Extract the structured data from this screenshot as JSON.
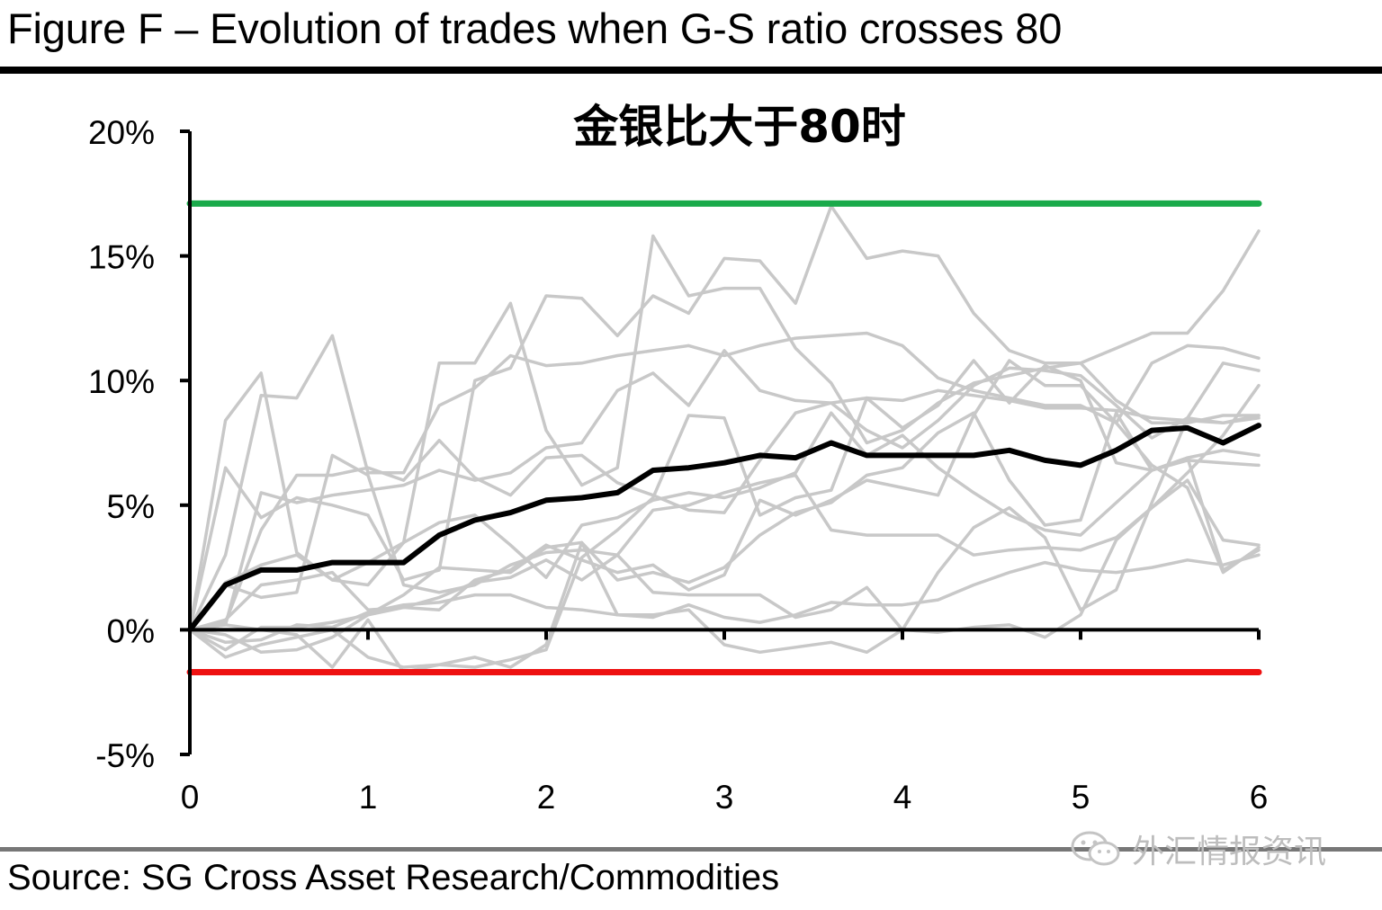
{
  "figure_title": "Figure F – Evolution of trades when G-S ratio crosses 80",
  "source": "Source: SG Cross Asset Research/Commodities",
  "watermark": "外汇情报资讯",
  "colors": {
    "average": "#000000",
    "individual": "#c8c8c8",
    "upper_threshold": "#1aaa4a",
    "lower_threshold": "#ee1111",
    "axis": "#000000"
  },
  "chart_data": {
    "type": "line",
    "title": "金银比大于80时",
    "xlabel": "",
    "ylabel": "",
    "xlim": [
      0,
      6
    ],
    "ylim": [
      -5,
      20
    ],
    "x_ticks": [
      0,
      1,
      2,
      3,
      4,
      5,
      6
    ],
    "x_tick_labels": [
      "0",
      "1",
      "2",
      "3",
      "4",
      "5",
      "6"
    ],
    "y_ticks": [
      -5,
      0,
      5,
      10,
      15,
      20
    ],
    "y_tick_labels": [
      "-5%",
      "0%",
      "5%",
      "10%",
      "15%",
      "20%"
    ],
    "grid": false,
    "x": [
      0,
      0.2,
      0.4,
      0.6,
      0.8,
      1.0,
      1.2,
      1.4,
      1.6,
      1.8,
      2.0,
      2.2,
      2.4,
      2.6,
      2.8,
      3.0,
      3.2,
      3.4,
      3.6,
      3.8,
      4.0,
      4.2,
      4.4,
      4.6,
      4.8,
      5.0,
      5.2,
      5.4,
      5.6,
      5.8,
      6.0
    ],
    "thresholds": [
      {
        "role": "upper",
        "y": 17.1
      },
      {
        "role": "lower",
        "y": -1.7
      }
    ],
    "average": [
      0,
      1.8,
      2.4,
      2.4,
      2.7,
      2.7,
      2.7,
      3.8,
      4.4,
      4.7,
      5.2,
      5.3,
      5.5,
      6.4,
      6.5,
      6.7,
      7.0,
      6.9,
      7.5,
      7.0,
      7.0,
      7.0,
      7.0,
      7.2,
      6.8,
      6.6,
      7.2,
      8.0,
      8.1,
      7.5,
      8.2
    ],
    "series": [
      {
        "values": [
          0,
          8.4,
          10.3,
          3.1,
          2.0,
          2.7,
          3.5,
          10.7,
          10.7,
          13.1,
          8.0,
          5.8,
          6.5,
          15.8,
          13.4,
          13.7,
          13.7,
          11.3,
          9.9,
          7.5,
          8.0,
          9.1,
          9.9,
          10.2,
          10.5,
          10.7,
          11.3,
          11.9,
          11.9,
          13.6,
          16.0
        ]
      },
      {
        "values": [
          0,
          6.5,
          4.5,
          5.3,
          5.0,
          4.6,
          2.0,
          2.4,
          10.0,
          10.5,
          13.4,
          13.3,
          11.8,
          13.4,
          12.7,
          14.9,
          14.8,
          13.1,
          17.0,
          14.9,
          15.2,
          15.0,
          12.7,
          11.2,
          10.7,
          10.7,
          9.2,
          8.3,
          8.3,
          8.6,
          8.6
        ]
      },
      {
        "values": [
          0,
          3.0,
          9.4,
          9.3,
          11.8,
          6.3,
          6.3,
          9.0,
          9.7,
          11.0,
          10.6,
          10.7,
          11.0,
          11.2,
          11.4,
          11.0,
          11.4,
          11.7,
          11.8,
          11.9,
          11.4,
          10.1,
          9.6,
          9.3,
          9.0,
          9.0,
          8.3,
          10.7,
          11.4,
          11.3,
          10.9
        ]
      },
      {
        "values": [
          0,
          1.8,
          1.3,
          1.5,
          7.0,
          6.2,
          1.8,
          1.5,
          1.8,
          2.6,
          3.1,
          3.2,
          3.0,
          4.8,
          5.0,
          5.5,
          5.9,
          6.2,
          4.0,
          3.8,
          3.8,
          3.8,
          3.0,
          3.2,
          3.3,
          3.2,
          3.7,
          4.9,
          6.3,
          7.8,
          9.8
        ]
      },
      {
        "values": [
          0,
          0.2,
          5.5,
          5.1,
          5.4,
          5.6,
          5.8,
          6.4,
          6.0,
          6.3,
          7.3,
          7.5,
          9.6,
          10.3,
          9.0,
          11.2,
          9.6,
          9.2,
          9.1,
          9.3,
          9.2,
          9.6,
          9.4,
          9.2,
          8.9,
          8.9,
          8.8,
          8.5,
          8.4,
          8.3,
          8.6
        ]
      },
      {
        "values": [
          0,
          0.3,
          4.0,
          6.2,
          6.2,
          6.5,
          6.0,
          7.6,
          6.1,
          5.4,
          6.9,
          7.0,
          5.9,
          5.4,
          4.8,
          4.7,
          6.8,
          8.7,
          9.1,
          8.0,
          7.3,
          8.4,
          9.8,
          10.5,
          10.4,
          10.2,
          9.0,
          7.7,
          8.5,
          8.3,
          8.5
        ]
      },
      {
        "values": [
          0,
          1.9,
          2.6,
          3.0,
          2.0,
          1.8,
          3.5,
          4.3,
          4.6,
          3.4,
          2.1,
          4.2,
          4.5,
          5.2,
          5.5,
          5.3,
          5.7,
          6.3,
          8.7,
          7.0,
          7.8,
          6.5,
          5.5,
          4.6,
          4.0,
          3.8,
          5.1,
          6.4,
          6.9,
          7.2,
          7.0
        ]
      },
      {
        "values": [
          0,
          -0.8,
          0.1,
          0.1,
          0.3,
          0.6,
          1.4,
          2.5,
          2.4,
          2.3,
          3.3,
          3.5,
          2.0,
          2.3,
          1.9,
          2.5,
          3.8,
          4.7,
          5.1,
          6.2,
          6.5,
          7.9,
          8.7,
          6.0,
          4.2,
          4.4,
          8.7,
          6.4,
          6.9,
          2.4,
          3.2
        ]
      },
      {
        "values": [
          0,
          0.4,
          1.8,
          2.0,
          2.3,
          0.8,
          0.9,
          1.3,
          1.9,
          2.1,
          2.8,
          2.0,
          3.0,
          1.5,
          1.4,
          1.4,
          1.4,
          0.5,
          0.8,
          1.7,
          0.0,
          2.3,
          4.1,
          4.9,
          3.7,
          0.8,
          1.6,
          5.1,
          8.5,
          10.7,
          10.4
        ]
      },
      {
        "values": [
          0,
          -0.2,
          -0.9,
          -0.8,
          -0.3,
          0.6,
          0.9,
          0.8,
          2.0,
          2.4,
          3.4,
          2.8,
          2.3,
          2.6,
          1.6,
          2.2,
          5.2,
          4.6,
          5.2,
          6.0,
          5.7,
          5.4,
          8.6,
          10.8,
          9.8,
          9.8,
          8.3,
          6.6,
          5.7,
          2.3,
          3.3
        ]
      },
      {
        "values": [
          0,
          -0.5,
          -0.4,
          0.2,
          0.1,
          0.7,
          1.0,
          1.1,
          1.4,
          1.4,
          0.9,
          0.8,
          0.6,
          0.5,
          1.0,
          0.5,
          0.3,
          0.6,
          1.1,
          1.0,
          1.0,
          1.2,
          1.8,
          2.3,
          2.7,
          2.4,
          2.3,
          2.5,
          2.8,
          2.6,
          3.0
        ]
      },
      {
        "values": [
          0,
          0.2,
          0.0,
          -0.2,
          -1.5,
          0.4,
          -1.7,
          -1.4,
          -1.5,
          -1.2,
          -0.8,
          2.9,
          4.0,
          5.3,
          8.6,
          8.5,
          4.6,
          5.3,
          5.6,
          9.3,
          8.1,
          9.0,
          10.8,
          9.1,
          10.6,
          10.0,
          6.7,
          6.4,
          6.8,
          6.7,
          6.6
        ]
      },
      {
        "values": [
          0,
          -1.1,
          -0.6,
          -0.3,
          0.0,
          -1.1,
          -1.5,
          -1.4,
          -1.1,
          -1.5,
          -0.6,
          3.5,
          0.6,
          0.6,
          0.8,
          -0.6,
          -0.9,
          -0.7,
          -0.5,
          -0.9,
          0.0,
          -0.1,
          0.1,
          0.2,
          -0.3,
          0.6,
          3.6,
          4.9,
          6.0,
          3.6,
          3.4
        ]
      }
    ]
  }
}
